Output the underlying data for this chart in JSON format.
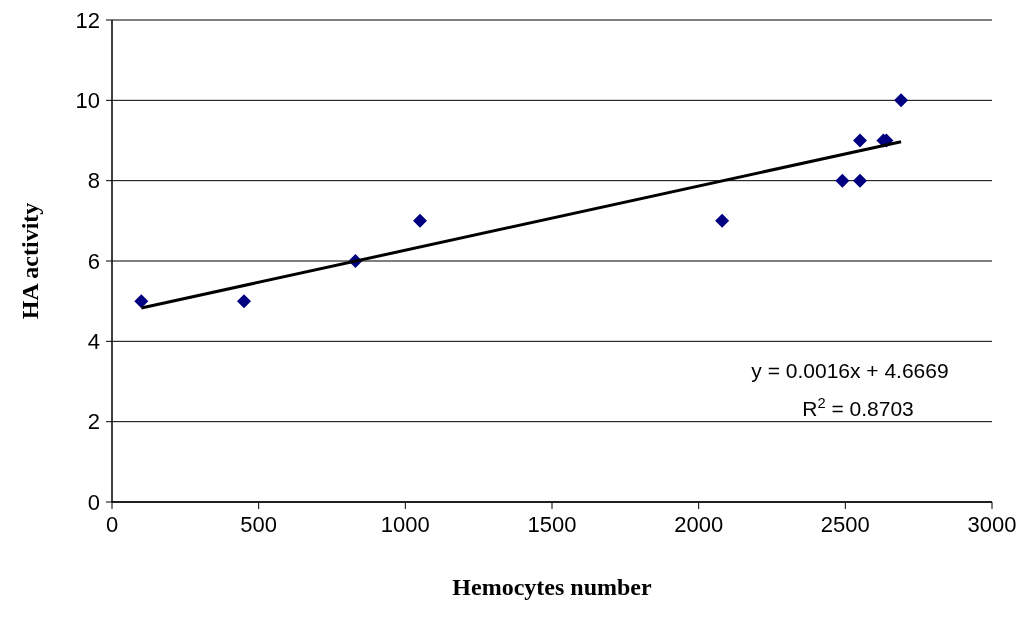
{
  "chart_data": {
    "type": "scatter",
    "xlabel": "Hemocytes number",
    "ylabel": "HA activity",
    "x": [
      100,
      450,
      830,
      1050,
      2080,
      2490,
      2550,
      2550,
      2630,
      2640,
      2690
    ],
    "series": [
      {
        "color": "#000080",
        "values": [
          5,
          5,
          6,
          7,
          7,
          8,
          8,
          9,
          9,
          9,
          10
        ]
      },
      {
        "type": "line",
        "color": "#000000",
        "x": [
          100,
          2690
        ],
        "values": [
          4.83,
          8.97
        ],
        "marker": "none"
      }
    ],
    "marker": "diamond",
    "grid": "y",
    "xlim": [
      0,
      3000
    ],
    "xticks": [
      0,
      500,
      1000,
      1500,
      2000,
      2500,
      3000
    ],
    "ylim": [
      0,
      12
    ],
    "yticks": [
      0,
      2,
      4,
      6,
      8,
      10,
      12
    ],
    "annotations": [
      "y = 0.0016x + 4.6669",
      "R$^{2}$ = 0.8703"
    ]
  }
}
